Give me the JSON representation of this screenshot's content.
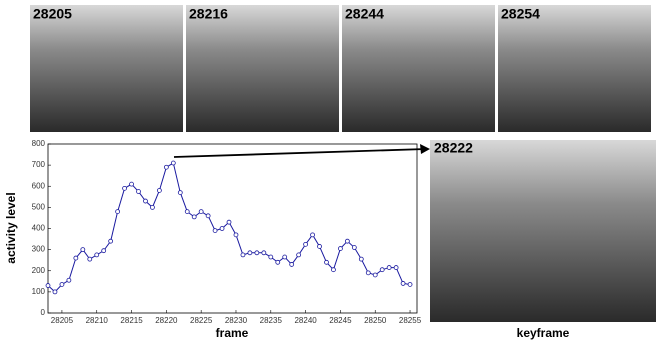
{
  "thumbnails": [
    "28205",
    "28216",
    "28244",
    "28254"
  ],
  "keyframe": {
    "label": "28222",
    "caption": "keyframe"
  },
  "chart_data": {
    "type": "line",
    "x_label": "frame",
    "y_label": "activity level",
    "x": [
      28203,
      28204,
      28205,
      28206,
      28207,
      28208,
      28209,
      28210,
      28211,
      28212,
      28213,
      28214,
      28215,
      28216,
      28217,
      28218,
      28219,
      28220,
      28221,
      28222,
      28223,
      28224,
      28225,
      28226,
      28227,
      28228,
      28229,
      28230,
      28231,
      28232,
      28233,
      28234,
      28235,
      28236,
      28237,
      28238,
      28239,
      28240,
      28241,
      28242,
      28243,
      28244,
      28245,
      28246,
      28247,
      28248,
      28249,
      28250,
      28251,
      28252,
      28253,
      28254,
      28255
    ],
    "series": [
      {
        "color": "#1a1aa0",
        "values": [
          130,
          100,
          135,
          155,
          260,
          300,
          255,
          275,
          295,
          340,
          480,
          590,
          610,
          575,
          530,
          500,
          580,
          690,
          710,
          570,
          480,
          455,
          480,
          460,
          390,
          400,
          430,
          370,
          275,
          285,
          285,
          285,
          265,
          240,
          265,
          230,
          275,
          325,
          370,
          315,
          240,
          205,
          305,
          340,
          310,
          255,
          190,
          180,
          205,
          215,
          215,
          140,
          135
        ]
      }
    ],
    "xlim": [
      28203,
      28256
    ],
    "xticks": [
      28205,
      28210,
      28215,
      28220,
      28225,
      28230,
      28235,
      28240,
      28245,
      28250,
      28255
    ],
    "ylim": [
      0,
      800
    ],
    "yticks": [
      0,
      100,
      200,
      300,
      400,
      500,
      600,
      700,
      800
    ]
  }
}
